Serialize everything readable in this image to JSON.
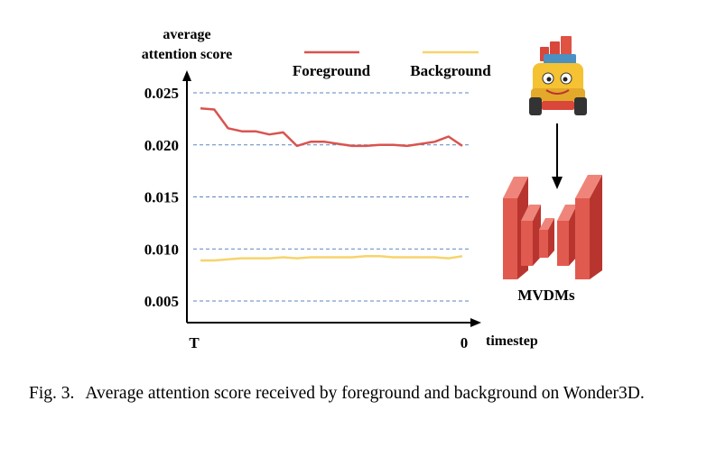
{
  "chart_data": {
    "type": "line",
    "ylabel_line1": "average",
    "ylabel_line2": "attention score",
    "xlabel": "timestep",
    "x_start_label": "T",
    "x_end_label": "0",
    "ylim": [
      0.003,
      0.0265
    ],
    "yticks": [
      "0.025",
      "0.020",
      "0.015",
      "0.010",
      "0.005"
    ],
    "ytick_values": [
      0.025,
      0.02,
      0.015,
      0.01,
      0.005
    ],
    "grid": "horizontal dashed",
    "legend_placement": "top",
    "series": [
      {
        "name": "Foreground",
        "color": "#d9534f",
        "values": [
          0.0235,
          0.0234,
          0.0216,
          0.0213,
          0.0213,
          0.021,
          0.0212,
          0.0199,
          0.0203,
          0.0203,
          0.0201,
          0.0199,
          0.0199,
          0.02,
          0.02,
          0.0199,
          0.0201,
          0.0203,
          0.0208,
          0.0199
        ]
      },
      {
        "name": "Background",
        "color": "#f7d46b",
        "values": [
          0.0089,
          0.0089,
          0.009,
          0.0091,
          0.0091,
          0.0091,
          0.0092,
          0.0091,
          0.0092,
          0.0092,
          0.0092,
          0.0092,
          0.0093,
          0.0093,
          0.0092,
          0.0092,
          0.0092,
          0.0092,
          0.0091,
          0.0093
        ]
      }
    ]
  },
  "diagram": {
    "model_label": "MVDMs",
    "block_color": "#d9534f",
    "input_icon": "toy-truck-image"
  },
  "caption": {
    "label": "Fig. 3.",
    "text": "Average attention score received by foreground and background on Wonder3D."
  }
}
